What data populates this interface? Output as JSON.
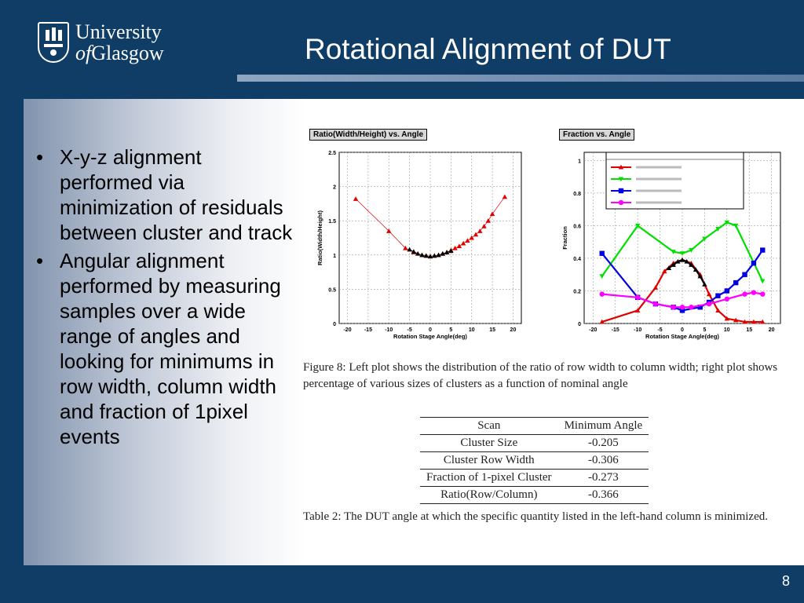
{
  "header": {
    "title": "Rotational Alignment of DUT",
    "logo": {
      "line1": "University",
      "line2_of": "of",
      "line2_name": "Glasgow",
      "icon": "university-crest-icon"
    }
  },
  "bullets": [
    "X-y-z alignment performed via minimization of residuals between cluster and track",
    "Angular alignment performed by measuring samples over a wide range of angles and looking for minimums in row width, column width and fraction of 1pixel events"
  ],
  "chart_data": [
    {
      "type": "scatter",
      "title": "Ratio(Width/Height)  vs.  Angle",
      "xlabel": "Rotation Stage Angle(deg)",
      "ylabel": "Ratio(Width/Height)",
      "xlim": [
        -22,
        22
      ],
      "ylim": [
        0,
        2.5
      ],
      "xticks": [
        -20,
        -15,
        -10,
        -5,
        0,
        5,
        10,
        15,
        20
      ],
      "yticks": [
        0,
        0.5,
        1,
        1.5,
        2,
        2.5
      ],
      "grid": true,
      "series": [
        {
          "color": "#e00000",
          "marker": "triangle",
          "x": [
            -18,
            -10,
            -6,
            -4,
            -2,
            -1,
            0,
            1,
            2,
            3,
            4,
            5,
            6,
            7,
            8,
            9,
            10,
            11,
            12,
            13,
            14,
            15,
            18
          ],
          "y": [
            1.82,
            1.35,
            1.1,
            1.04,
            1.0,
            0.99,
            0.98,
            0.99,
            1.0,
            1.02,
            1.04,
            1.07,
            1.1,
            1.13,
            1.17,
            1.21,
            1.25,
            1.3,
            1.35,
            1.42,
            1.5,
            1.6,
            1.85
          ]
        },
        {
          "color": "#000000",
          "marker": "triangle",
          "x": [
            -5,
            -4,
            -3,
            -2,
            -1,
            0,
            1,
            2,
            3,
            4,
            5
          ],
          "y": [
            1.08,
            1.05,
            1.02,
            1.0,
            0.99,
            0.98,
            0.99,
            1.0,
            1.02,
            1.04,
            1.06
          ]
        }
      ]
    },
    {
      "type": "line",
      "title": "Fraction  vs.  Angle",
      "xlabel": "Rotation Stage Angle(deg)",
      "ylabel": "Fraction",
      "xlim": [
        -22,
        22
      ],
      "ylim": [
        0,
        1.05
      ],
      "xticks": [
        -20,
        -15,
        -10,
        -5,
        0,
        5,
        10,
        15,
        20
      ],
      "yticks": [
        0,
        0.2,
        0.4,
        0.6,
        0.8,
        1
      ],
      "grid": true,
      "legend": "top-right",
      "series": [
        {
          "color": "#e00000",
          "marker": "triangle",
          "x": [
            -18,
            -10,
            -6,
            -4,
            -2,
            0,
            2,
            4,
            6,
            8,
            10,
            12,
            14,
            16,
            18
          ],
          "y": [
            0.01,
            0.08,
            0.22,
            0.32,
            0.37,
            0.39,
            0.37,
            0.3,
            0.18,
            0.08,
            0.03,
            0.02,
            0.01,
            0.01,
            0.01
          ]
        },
        {
          "color": "#00e000",
          "marker": "triangle-down",
          "x": [
            -18,
            -10,
            -2,
            0,
            2,
            5,
            8,
            10,
            12,
            18
          ],
          "y": [
            0.29,
            0.6,
            0.44,
            0.43,
            0.45,
            0.52,
            0.58,
            0.62,
            0.6,
            0.26
          ]
        },
        {
          "color": "#0000e0",
          "marker": "square",
          "x": [
            -18,
            -10,
            -6,
            -2,
            0,
            4,
            6,
            8,
            10,
            12,
            14,
            16,
            18
          ],
          "y": [
            0.43,
            0.16,
            0.12,
            0.1,
            0.08,
            0.1,
            0.13,
            0.17,
            0.2,
            0.25,
            0.3,
            0.37,
            0.45
          ]
        },
        {
          "color": "#ff00ff",
          "marker": "circle",
          "x": [
            -18,
            -10,
            -6,
            -2,
            0,
            2,
            6,
            10,
            14,
            16,
            18
          ],
          "y": [
            0.18,
            0.16,
            0.12,
            0.1,
            0.1,
            0.1,
            0.12,
            0.15,
            0.18,
            0.19,
            0.18
          ]
        },
        {
          "color": "#000000",
          "marker": "triangle",
          "x": [
            -3,
            -2,
            -1,
            0,
            1,
            2,
            3,
            4,
            5
          ],
          "y": [
            0.34,
            0.36,
            0.38,
            0.39,
            0.38,
            0.36,
            0.33,
            0.29,
            0.24
          ]
        }
      ]
    }
  ],
  "figure_caption": "Figure 8: Left plot shows the distribution of the ratio of row width to column width; right plot shows percentage of various sizes of clusters as a function of nominal angle",
  "table": {
    "headers": [
      "Scan",
      "Minimum Angle"
    ],
    "rows": [
      [
        "Cluster Size",
        "-0.205"
      ],
      [
        "Cluster Row Width",
        "-0.306"
      ],
      [
        "Fraction of 1-pixel Cluster",
        "-0.273"
      ],
      [
        "Ratio(Row/Column)",
        "-0.366"
      ]
    ]
  },
  "table_caption": "Table 2: The DUT angle at which the specific quantity listed in the left-hand column is minimized.",
  "page_number": "8"
}
